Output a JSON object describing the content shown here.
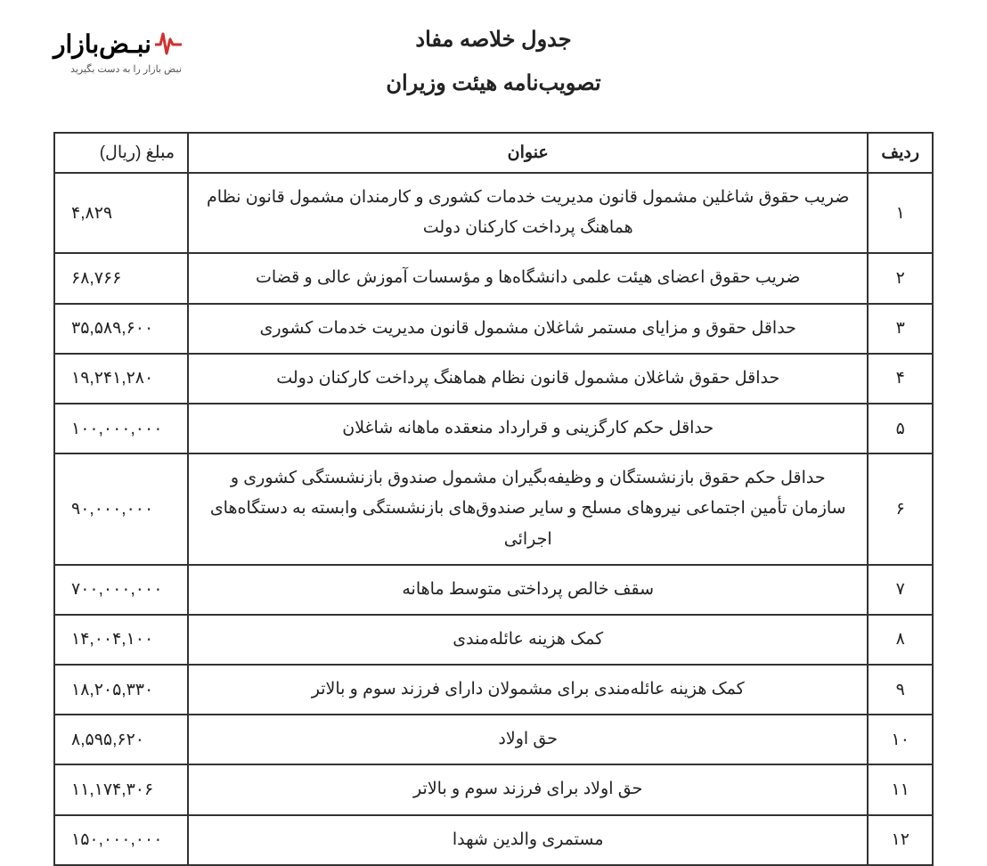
{
  "logo": {
    "brand_text": "نبـض‌بازار",
    "tagline": "نبض بازار را به دست بگیرید",
    "pulse_color": "#d32f2f"
  },
  "titles": {
    "line1": "جدول خلاصه مفاد",
    "line2": "تصویب‌نامه هیئت وزیران"
  },
  "table": {
    "headers": {
      "row": "ردیف",
      "title": "عنوان",
      "amount": "مبلغ (ریال)"
    },
    "rows": [
      {
        "n": "۱",
        "title": "ضریب حقوق شاغلین مشمول قانون مدیریت خدمات کشوری و کارمندان مشمول قانون نظام هماهنگ پرداخت کارکنان دولت",
        "amount": "۴,۸۲۹"
      },
      {
        "n": "۲",
        "title": "ضریب حقوق اعضای هیئت علمی دانشگاه‌ها و مؤسسات آموزش عالی و قضات",
        "amount": "۶۸,۷۶۶"
      },
      {
        "n": "۳",
        "title": "حداقل حقوق و مزایای مستمر شاغلان مشمول قانون مدیریت خدمات کشوری",
        "amount": "۳۵,۵۸۹,۶۰۰"
      },
      {
        "n": "۴",
        "title": "حداقل حقوق شاغلان مشمول قانون نظام هماهنگ پرداخت کارکنان دولت",
        "amount": "۱۹,۲۴۱,۲۸۰"
      },
      {
        "n": "۵",
        "title": "حداقل حکم کارگزینی و قرارداد منعقده ماهانه شاغلان",
        "amount": "۱۰۰,۰۰۰,۰۰۰"
      },
      {
        "n": "۶",
        "title": "حداقل حکم حقوق بازنشستگان و وظیفه‌بگیران مشمول صندوق بازنشستگی کشوری و سازمان تأمین اجتماعی نیروهای مسلح و سایر صندوق‌های بازنشستگی وابسته به دستگاه‌های اجرائی",
        "amount": "۹۰,۰۰۰,۰۰۰"
      },
      {
        "n": "۷",
        "title": "سقف خالص پرداختی متوسط ماهانه",
        "amount": "۷۰۰,۰۰۰,۰۰۰"
      },
      {
        "n": "۸",
        "title": "کمک هزینه عائله‌مندی",
        "amount": "۱۴,۰۰۴,۱۰۰"
      },
      {
        "n": "۹",
        "title": "کمک هزینه عائله‌مندی برای مشمولان دارای فرزند سوم و بالاتر",
        "amount": "۱۸,۲۰۵,۳۳۰"
      },
      {
        "n": "۱۰",
        "title": "حق اولاد",
        "amount": "۸,۵۹۵,۶۲۰"
      },
      {
        "n": "۱۱",
        "title": "حق اولاد برای فرزند سوم و بالاتر",
        "amount": "۱۱,۱۷۴,۳۰۶"
      },
      {
        "n": "۱۲",
        "title": "مستمری والدین شهدا",
        "amount": "۱۵۰,۰۰۰,۰۰۰"
      }
    ]
  },
  "styling": {
    "border_color": "#333333",
    "text_color": "#222222",
    "background_color": "#ffffff",
    "header_fontsize_pt": 18,
    "cell_fontsize_pt": 15,
    "title_fontsize_pt": 20,
    "font_family": "Tahoma"
  }
}
